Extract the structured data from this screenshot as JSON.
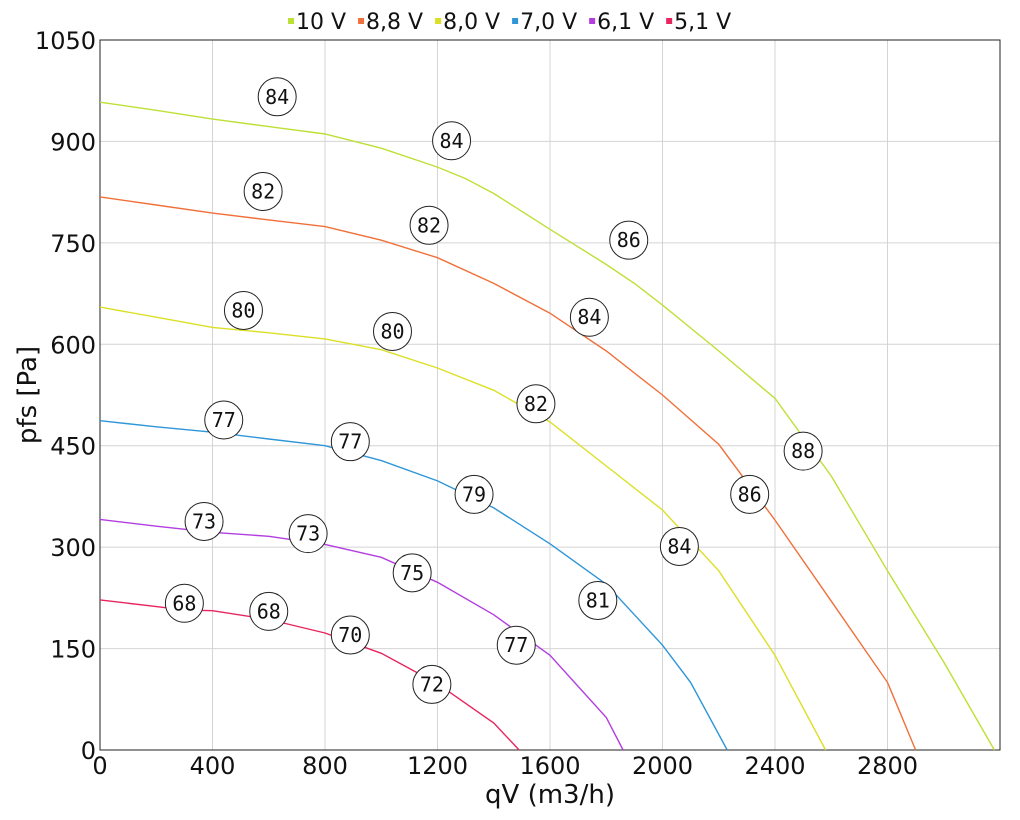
{
  "chart_data": {
    "type": "line",
    "xlabel": "qV (m3/h)",
    "ylabel": "pfs [Pa]",
    "xlim": [
      0,
      3200
    ],
    "ylim": [
      0,
      1050
    ],
    "xticks": [
      0,
      400,
      800,
      1200,
      1600,
      2000,
      2400,
      2800
    ],
    "yticks": [
      0,
      150,
      300,
      450,
      600,
      750,
      900,
      1050
    ],
    "grid": true,
    "legend_position": "top-center",
    "series": [
      {
        "name": "10 V",
        "color": "#bde036",
        "points": [
          [
            0,
            958
          ],
          [
            200,
            946
          ],
          [
            400,
            933
          ],
          [
            600,
            922
          ],
          [
            800,
            911
          ],
          [
            1000,
            890
          ],
          [
            1200,
            862
          ],
          [
            1300,
            845
          ],
          [
            1400,
            823
          ],
          [
            1600,
            770
          ],
          [
            1800,
            718
          ],
          [
            1900,
            690
          ],
          [
            2000,
            658
          ],
          [
            2200,
            590
          ],
          [
            2400,
            520
          ],
          [
            2600,
            405
          ],
          [
            2800,
            265
          ],
          [
            3000,
            130
          ],
          [
            3180,
            0
          ]
        ]
      },
      {
        "name": "8,8 V",
        "color": "#f0703a",
        "points": [
          [
            0,
            818
          ],
          [
            200,
            806
          ],
          [
            400,
            794
          ],
          [
            600,
            784
          ],
          [
            800,
            774
          ],
          [
            1000,
            754
          ],
          [
            1200,
            728
          ],
          [
            1400,
            690
          ],
          [
            1600,
            646
          ],
          [
            1800,
            590
          ],
          [
            2000,
            525
          ],
          [
            2200,
            452
          ],
          [
            2400,
            340
          ],
          [
            2600,
            220
          ],
          [
            2800,
            100
          ],
          [
            2900,
            0
          ]
        ]
      },
      {
        "name": "8,0 V",
        "color": "#dbe026",
        "points": [
          [
            0,
            655
          ],
          [
            200,
            640
          ],
          [
            400,
            625
          ],
          [
            600,
            617
          ],
          [
            800,
            608
          ],
          [
            1000,
            592
          ],
          [
            1200,
            565
          ],
          [
            1400,
            532
          ],
          [
            1600,
            485
          ],
          [
            1800,
            420
          ],
          [
            2000,
            355
          ],
          [
            2200,
            265
          ],
          [
            2400,
            140
          ],
          [
            2580,
            0
          ]
        ]
      },
      {
        "name": "7,0 V",
        "color": "#2f96d8",
        "points": [
          [
            0,
            487
          ],
          [
            200,
            478
          ],
          [
            400,
            470
          ],
          [
            600,
            460
          ],
          [
            800,
            450
          ],
          [
            1000,
            428
          ],
          [
            1200,
            398
          ],
          [
            1400,
            358
          ],
          [
            1600,
            305
          ],
          [
            1800,
            245
          ],
          [
            2000,
            155
          ],
          [
            2100,
            100
          ],
          [
            2230,
            0
          ]
        ]
      },
      {
        "name": "6,1 V",
        "color": "#b33ee0",
        "points": [
          [
            0,
            341
          ],
          [
            200,
            331
          ],
          [
            400,
            322
          ],
          [
            600,
            316
          ],
          [
            800,
            304
          ],
          [
            1000,
            285
          ],
          [
            1200,
            248
          ],
          [
            1400,
            200
          ],
          [
            1600,
            140
          ],
          [
            1800,
            48
          ],
          [
            1860,
            0
          ]
        ]
      },
      {
        "name": "5,1 V",
        "color": "#e8255e",
        "points": [
          [
            0,
            222
          ],
          [
            200,
            212
          ],
          [
            300,
            207
          ],
          [
            400,
            206
          ],
          [
            600,
            193
          ],
          [
            800,
            173
          ],
          [
            1000,
            143
          ],
          [
            1200,
            98
          ],
          [
            1400,
            40
          ],
          [
            1490,
            0
          ]
        ]
      }
    ],
    "annotations": [
      {
        "label": "84",
        "x": 630,
        "y": 966
      },
      {
        "label": "84",
        "x": 1250,
        "y": 901
      },
      {
        "label": "86",
        "x": 1880,
        "y": 754
      },
      {
        "label": "88",
        "x": 2500,
        "y": 442
      },
      {
        "label": "82",
        "x": 580,
        "y": 826
      },
      {
        "label": "82",
        "x": 1170,
        "y": 776
      },
      {
        "label": "84",
        "x": 1740,
        "y": 640
      },
      {
        "label": "86",
        "x": 2310,
        "y": 378
      },
      {
        "label": "80",
        "x": 510,
        "y": 650
      },
      {
        "label": "80",
        "x": 1040,
        "y": 619
      },
      {
        "label": "82",
        "x": 1550,
        "y": 512
      },
      {
        "label": "84",
        "x": 2060,
        "y": 301
      },
      {
        "label": "77",
        "x": 440,
        "y": 488
      },
      {
        "label": "77",
        "x": 890,
        "y": 456
      },
      {
        "label": "79",
        "x": 1330,
        "y": 378
      },
      {
        "label": "81",
        "x": 1770,
        "y": 221
      },
      {
        "label": "73",
        "x": 370,
        "y": 338
      },
      {
        "label": "73",
        "x": 740,
        "y": 320
      },
      {
        "label": "75",
        "x": 1110,
        "y": 262
      },
      {
        "label": "77",
        "x": 1480,
        "y": 155
      },
      {
        "label": "68",
        "x": 300,
        "y": 217
      },
      {
        "label": "68",
        "x": 600,
        "y": 205
      },
      {
        "label": "70",
        "x": 890,
        "y": 170
      },
      {
        "label": "72",
        "x": 1180,
        "y": 97
      }
    ]
  }
}
